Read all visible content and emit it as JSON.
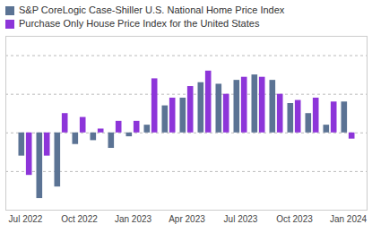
{
  "chart_data": {
    "type": "bar",
    "categories": [
      "Jul 2022",
      null,
      null,
      "Oct 2022",
      null,
      null,
      "Jan 2023",
      null,
      null,
      "Apr 2023",
      null,
      null,
      "Jul 2023",
      null,
      null,
      "Oct 2023",
      null,
      null,
      "Jan 2024"
    ],
    "series": [
      {
        "name": "S&P CoreLogic Case-Shiller U.S. National Home Price Index",
        "color": "#5b7394",
        "values": [
          -0.3,
          -0.85,
          -0.7,
          -0.15,
          -0.1,
          -0.2,
          -0.05,
          0.1,
          0.35,
          0.45,
          0.65,
          0.63,
          0.68,
          0.75,
          0.68,
          0.38,
          0.25,
          0.1,
          0.4
        ]
      },
      {
        "name": "Purchase Only House Price Index for the United States",
        "color": "#8d35d9",
        "values": [
          -0.55,
          -0.3,
          0.25,
          0.2,
          0.05,
          0.15,
          0.15,
          0.7,
          0.45,
          0.6,
          0.8,
          0.5,
          0.72,
          0.72,
          0.5,
          0.42,
          0.45,
          0.4,
          -0.08
        ]
      }
    ],
    "ylim": [
      -1,
      1.25
    ],
    "yticks": [
      -1,
      -0.5,
      0,
      0.5,
      1
    ],
    "grid": true,
    "tick_labels": "x"
  }
}
